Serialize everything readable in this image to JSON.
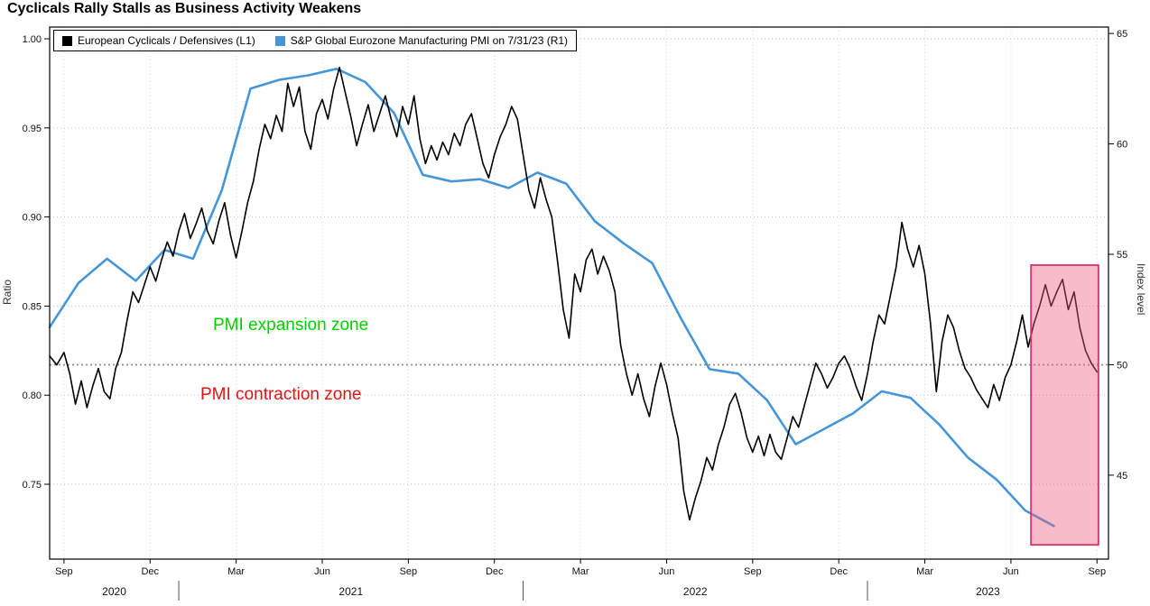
{
  "title": "Cyclicals Rally Stalls as Business Activity Weakens",
  "legend": [
    {
      "label": "European Cyclicals / Defensives (L1)",
      "color": "#000000"
    },
    {
      "label": "S&P Global Eurozone Manufacturing PMI on 7/31/23 (R1)",
      "color": "#4596d9"
    }
  ],
  "annotations": {
    "expansion": {
      "text": "PMI expansion zone",
      "color": "#00cf00"
    },
    "contraction": {
      "text": "PMI contraction zone",
      "color": "#e31212"
    }
  },
  "left_axis_title": "Ratio",
  "right_axis_title": "Index level",
  "chart_data": {
    "type": "line",
    "title": "Cyclicals Rally Stalls as Business Activity Weakens",
    "x_unit": "months since Jan 2020 (8 = Sep 2020)",
    "x_range": [
      7.5,
      44.4
    ],
    "grid": "dotted",
    "legend_position": "top-left",
    "x_ticks": [
      {
        "t": 8,
        "label": "Sep"
      },
      {
        "t": 11,
        "label": "Dec"
      },
      {
        "t": 14,
        "label": "Mar"
      },
      {
        "t": 17,
        "label": "Jun"
      },
      {
        "t": 20,
        "label": "Sep"
      },
      {
        "t": 23,
        "label": "Dec"
      },
      {
        "t": 26,
        "label": "Mar"
      },
      {
        "t": 29,
        "label": "Jun"
      },
      {
        "t": 32,
        "label": "Sep"
      },
      {
        "t": 35,
        "label": "Dec"
      },
      {
        "t": 38,
        "label": "Mar"
      },
      {
        "t": 41,
        "label": "Jun"
      },
      {
        "t": 44,
        "label": "Sep"
      }
    ],
    "years": [
      {
        "label": "2020",
        "from": 7.5,
        "to": 12
      },
      {
        "label": "2021",
        "from": 12,
        "to": 24
      },
      {
        "label": "2022",
        "from": 24,
        "to": 36
      },
      {
        "label": "2023",
        "from": 36,
        "to": 44.4
      }
    ],
    "left_axis": {
      "label": "Ratio",
      "ticks": [
        0.75,
        0.8,
        0.85,
        0.9,
        0.95,
        1.0
      ],
      "range": [
        0.708,
        1.0066
      ]
    },
    "right_axis": {
      "label": "Index level",
      "ticks": [
        45,
        50,
        55,
        60,
        65
      ],
      "range": [
        41.2,
        65.29
      ]
    },
    "threshold": {
      "axis": "right",
      "value": 50,
      "meaning": "PMI expansion above / contraction below"
    },
    "highlight": {
      "t0": 41.7,
      "t1": 44.05,
      "v0": 0.716,
      "v1": 0.873,
      "axis": "left",
      "fill": "#ef5d7f",
      "stroke": "#d6336c"
    },
    "series": [
      {
        "name": "European Cyclicals / Defensives (L1)",
        "axis": "left",
        "color": "#000000",
        "width": 1.6,
        "points": [
          [
            7.5,
            0.822
          ],
          [
            7.75,
            0.817
          ],
          [
            8.0,
            0.824
          ],
          [
            8.2,
            0.812
          ],
          [
            8.4,
            0.795
          ],
          [
            8.6,
            0.808
          ],
          [
            8.8,
            0.793
          ],
          [
            9.0,
            0.805
          ],
          [
            9.2,
            0.815
          ],
          [
            9.4,
            0.802
          ],
          [
            9.6,
            0.798
          ],
          [
            9.8,
            0.815
          ],
          [
            10.0,
            0.824
          ],
          [
            10.2,
            0.842
          ],
          [
            10.4,
            0.858
          ],
          [
            10.6,
            0.852
          ],
          [
            10.8,
            0.862
          ],
          [
            11.0,
            0.872
          ],
          [
            11.2,
            0.864
          ],
          [
            11.4,
            0.876
          ],
          [
            11.6,
            0.886
          ],
          [
            11.8,
            0.878
          ],
          [
            12.0,
            0.892
          ],
          [
            12.2,
            0.902
          ],
          [
            12.4,
            0.888
          ],
          [
            12.6,
            0.896
          ],
          [
            12.8,
            0.905
          ],
          [
            13.0,
            0.892
          ],
          [
            13.2,
            0.885
          ],
          [
            13.4,
            0.898
          ],
          [
            13.6,
            0.908
          ],
          [
            13.8,
            0.89
          ],
          [
            14.0,
            0.877
          ],
          [
            14.2,
            0.892
          ],
          [
            14.4,
            0.908
          ],
          [
            14.6,
            0.92
          ],
          [
            14.8,
            0.938
          ],
          [
            15.0,
            0.952
          ],
          [
            15.2,
            0.944
          ],
          [
            15.4,
            0.957
          ],
          [
            15.6,
            0.948
          ],
          [
            15.8,
            0.975
          ],
          [
            16.0,
            0.962
          ],
          [
            16.2,
            0.973
          ],
          [
            16.4,
            0.948
          ],
          [
            16.6,
            0.938
          ],
          [
            16.8,
            0.958
          ],
          [
            17.0,
            0.966
          ],
          [
            17.2,
            0.955
          ],
          [
            17.4,
            0.972
          ],
          [
            17.6,
            0.984
          ],
          [
            17.8,
            0.97
          ],
          [
            18.0,
            0.956
          ],
          [
            18.2,
            0.94
          ],
          [
            18.4,
            0.952
          ],
          [
            18.6,
            0.963
          ],
          [
            18.8,
            0.948
          ],
          [
            19.0,
            0.958
          ],
          [
            19.2,
            0.968
          ],
          [
            19.4,
            0.955
          ],
          [
            19.6,
            0.945
          ],
          [
            19.8,
            0.962
          ],
          [
            20.0,
            0.952
          ],
          [
            20.2,
            0.968
          ],
          [
            20.4,
            0.944
          ],
          [
            20.6,
            0.93
          ],
          [
            20.8,
            0.94
          ],
          [
            21.0,
            0.932
          ],
          [
            21.2,
            0.942
          ],
          [
            21.4,
            0.935
          ],
          [
            21.6,
            0.947
          ],
          [
            21.8,
            0.94
          ],
          [
            22.0,
            0.952
          ],
          [
            22.2,
            0.958
          ],
          [
            22.4,
            0.944
          ],
          [
            22.6,
            0.93
          ],
          [
            22.8,
            0.922
          ],
          [
            23.0,
            0.935
          ],
          [
            23.2,
            0.945
          ],
          [
            23.4,
            0.952
          ],
          [
            23.6,
            0.962
          ],
          [
            23.8,
            0.955
          ],
          [
            24.0,
            0.935
          ],
          [
            24.2,
            0.915
          ],
          [
            24.4,
            0.905
          ],
          [
            24.6,
            0.922
          ],
          [
            24.8,
            0.91
          ],
          [
            25.0,
            0.9
          ],
          [
            25.2,
            0.875
          ],
          [
            25.4,
            0.848
          ],
          [
            25.6,
            0.832
          ],
          [
            25.8,
            0.868
          ],
          [
            26.0,
            0.858
          ],
          [
            26.2,
            0.876
          ],
          [
            26.4,
            0.882
          ],
          [
            26.6,
            0.868
          ],
          [
            26.8,
            0.878
          ],
          [
            27.0,
            0.87
          ],
          [
            27.2,
            0.858
          ],
          [
            27.4,
            0.828
          ],
          [
            27.6,
            0.812
          ],
          [
            27.8,
            0.8
          ],
          [
            28.0,
            0.812
          ],
          [
            28.2,
            0.798
          ],
          [
            28.4,
            0.788
          ],
          [
            28.6,
            0.805
          ],
          [
            28.8,
            0.818
          ],
          [
            29.0,
            0.806
          ],
          [
            29.2,
            0.79
          ],
          [
            29.4,
            0.776
          ],
          [
            29.6,
            0.746
          ],
          [
            29.8,
            0.73
          ],
          [
            30.0,
            0.742
          ],
          [
            30.2,
            0.752
          ],
          [
            30.4,
            0.765
          ],
          [
            30.6,
            0.758
          ],
          [
            30.8,
            0.772
          ],
          [
            31.0,
            0.782
          ],
          [
            31.2,
            0.795
          ],
          [
            31.4,
            0.801
          ],
          [
            31.6,
            0.79
          ],
          [
            31.8,
            0.776
          ],
          [
            32.0,
            0.768
          ],
          [
            32.2,
            0.777
          ],
          [
            32.4,
            0.766
          ],
          [
            32.6,
            0.778
          ],
          [
            32.8,
            0.768
          ],
          [
            33.0,
            0.764
          ],
          [
            33.2,
            0.776
          ],
          [
            33.4,
            0.788
          ],
          [
            33.6,
            0.782
          ],
          [
            33.8,
            0.794
          ],
          [
            34.0,
            0.806
          ],
          [
            34.2,
            0.818
          ],
          [
            34.4,
            0.812
          ],
          [
            34.6,
            0.804
          ],
          [
            34.8,
            0.81
          ],
          [
            35.0,
            0.818
          ],
          [
            35.2,
            0.822
          ],
          [
            35.4,
            0.815
          ],
          [
            35.6,
            0.805
          ],
          [
            35.8,
            0.797
          ],
          [
            36.0,
            0.812
          ],
          [
            36.2,
            0.83
          ],
          [
            36.4,
            0.845
          ],
          [
            36.6,
            0.84
          ],
          [
            36.8,
            0.856
          ],
          [
            37.0,
            0.872
          ],
          [
            37.2,
            0.897
          ],
          [
            37.4,
            0.882
          ],
          [
            37.6,
            0.872
          ],
          [
            37.8,
            0.884
          ],
          [
            38.0,
            0.868
          ],
          [
            38.2,
            0.84
          ],
          [
            38.4,
            0.802
          ],
          [
            38.6,
            0.83
          ],
          [
            38.8,
            0.845
          ],
          [
            39.0,
            0.838
          ],
          [
            39.2,
            0.825
          ],
          [
            39.4,
            0.815
          ],
          [
            39.6,
            0.81
          ],
          [
            39.8,
            0.803
          ],
          [
            40.0,
            0.798
          ],
          [
            40.2,
            0.793
          ],
          [
            40.4,
            0.806
          ],
          [
            40.6,
            0.797
          ],
          [
            40.8,
            0.81
          ],
          [
            41.0,
            0.817
          ],
          [
            41.2,
            0.83
          ],
          [
            41.4,
            0.845
          ],
          [
            41.6,
            0.827
          ],
          [
            41.8,
            0.84
          ],
          [
            42.0,
            0.85
          ],
          [
            42.2,
            0.862
          ],
          [
            42.4,
            0.85
          ],
          [
            42.6,
            0.858
          ],
          [
            42.8,
            0.865
          ],
          [
            43.0,
            0.848
          ],
          [
            43.2,
            0.858
          ],
          [
            43.4,
            0.838
          ],
          [
            43.6,
            0.825
          ],
          [
            43.8,
            0.818
          ],
          [
            44.0,
            0.813
          ]
        ]
      },
      {
        "name": "S&P Global Eurozone Manufacturing PMI on 7/31/23 (R1)",
        "axis": "right",
        "color": "#4596d9",
        "width": 2.6,
        "points": [
          [
            7.5,
            51.7
          ],
          [
            8.5,
            53.7
          ],
          [
            9.5,
            54.8
          ],
          [
            10.5,
            53.8
          ],
          [
            11.5,
            55.2
          ],
          [
            12.5,
            54.8
          ],
          [
            13.5,
            57.9
          ],
          [
            14.5,
            62.5
          ],
          [
            15.5,
            62.9
          ],
          [
            16.5,
            63.1
          ],
          [
            17.5,
            63.4
          ],
          [
            18.5,
            62.8
          ],
          [
            19.5,
            61.4
          ],
          [
            20.5,
            58.6
          ],
          [
            21.5,
            58.3
          ],
          [
            22.5,
            58.4
          ],
          [
            23.5,
            58.0
          ],
          [
            24.5,
            58.7
          ],
          [
            25.5,
            58.2
          ],
          [
            26.5,
            56.5
          ],
          [
            27.5,
            55.5
          ],
          [
            28.5,
            54.6
          ],
          [
            29.5,
            52.1
          ],
          [
            30.5,
            49.8
          ],
          [
            31.5,
            49.6
          ],
          [
            32.5,
            48.4
          ],
          [
            33.5,
            46.4
          ],
          [
            34.5,
            47.1
          ],
          [
            35.5,
            47.8
          ],
          [
            36.5,
            48.8
          ],
          [
            37.5,
            48.5
          ],
          [
            38.5,
            47.3
          ],
          [
            39.5,
            45.8
          ],
          [
            40.5,
            44.8
          ],
          [
            41.5,
            43.4
          ],
          [
            42.5,
            42.7
          ]
        ]
      }
    ]
  }
}
